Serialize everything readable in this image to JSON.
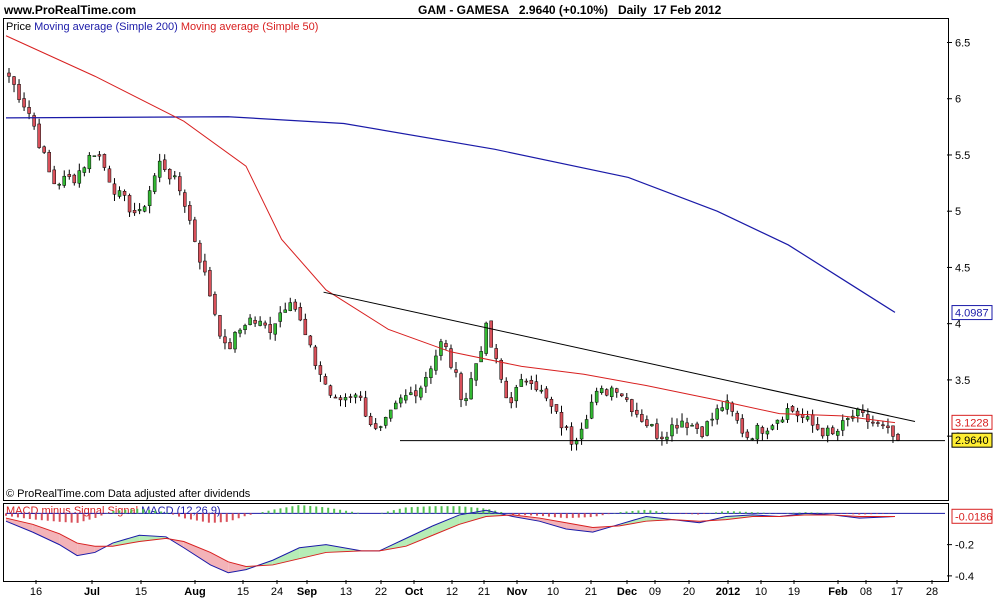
{
  "header": {
    "site": "www.ProRealTime.com",
    "title": "GAM - GAMESA   2.9640 (+0.10%)   Daily  17 Feb 2012"
  },
  "price_legend": {
    "price": "Price",
    "ma200": "Moving average (Simple 200)",
    "ma50": "Moving average (Simple 50)"
  },
  "footer_note": "© ProRealTime.com  Data adjusted after dividends",
  "macd_legend": {
    "hist": "MACD minus Signal",
    "signal": "Signal",
    "macd": "MACD (12,26,9)"
  },
  "badges": {
    "ma200": "4.0987",
    "ma50": "3.1228",
    "last": "2.9640",
    "macd": "-0.0186"
  },
  "colors": {
    "up": "#33b833",
    "down": "#d9505a",
    "ma200": "#1a1aa8",
    "ma50": "#d82020",
    "macd_line": "#1a1aa8",
    "signal_line": "#d82020",
    "hist": "#50c050",
    "fill_pos": "#b6ecb6",
    "fill_neg": "#f3b3b8",
    "last_badge_bg": "#ffee33"
  },
  "chart_data": [
    {
      "type": "candlestick",
      "title": "GAM - GAMESA",
      "ylim": [
        2.45,
        6.7
      ],
      "yticks": [
        6.5,
        6,
        5.5,
        5,
        4.5,
        4,
        3.5,
        3
      ],
      "x_labels": [
        "16",
        "Jul",
        "15",
        "Aug",
        "15",
        "24",
        "Sep",
        "13",
        "22",
        "Oct",
        "12",
        "21",
        "Nov",
        "10",
        "21",
        "Dec",
        "09",
        "20",
        "2012",
        "10",
        "19",
        "Feb",
        "08",
        "17",
        "28"
      ],
      "anchors": [
        {
          "name": "Jun 16",
          "price": 6.2
        },
        {
          "name": "Jun 30",
          "price": 5.85
        },
        {
          "name": "Jul 08",
          "price": 5.25
        },
        {
          "name": "Jul 12",
          "price": 5.3
        },
        {
          "name": "Jul 15",
          "price": 5.55
        },
        {
          "name": "Jul 22",
          "price": 5.15
        },
        {
          "name": "Jul 28",
          "price": 4.95
        },
        {
          "name": "Aug 03",
          "price": 5.45
        },
        {
          "name": "Aug 08",
          "price": 5.15
        },
        {
          "name": "Aug 12",
          "price": 4.45
        },
        {
          "name": "Aug 17",
          "price": 3.75
        },
        {
          "name": "Aug 24",
          "price": 4.05
        },
        {
          "name": "Aug 30",
          "price": 3.95
        },
        {
          "name": "Sep 06",
          "price": 4.25
        },
        {
          "name": "Sep 12",
          "price": 3.7
        },
        {
          "name": "Sep 16",
          "price": 3.3
        },
        {
          "name": "Sep 20",
          "price": 3.4
        },
        {
          "name": "Sep 23",
          "price": 3.0
        },
        {
          "name": "Sep 30",
          "price": 3.3
        },
        {
          "name": "Oct 06",
          "price": 3.45
        },
        {
          "name": "Oct 12",
          "price": 3.85
        },
        {
          "name": "Oct 19",
          "price": 3.3
        },
        {
          "name": "Oct 27",
          "price": 3.95
        },
        {
          "name": "Nov 02",
          "price": 3.3
        },
        {
          "name": "Nov 10",
          "price": 3.55
        },
        {
          "name": "Nov 18",
          "price": 3.25
        },
        {
          "name": "Nov 25",
          "price": 2.95
        },
        {
          "name": "Dec 03",
          "price": 3.35
        },
        {
          "name": "Dec 07",
          "price": 3.45
        },
        {
          "name": "Dec 13",
          "price": 3.2
        },
        {
          "name": "Dec 19",
          "price": 3.0
        },
        {
          "name": "Dec 24",
          "price": 3.15
        },
        {
          "name": "Dec 30",
          "price": 3.05
        },
        {
          "name": "Jan 03",
          "price": 3.3
        },
        {
          "name": "Jan 09",
          "price": 3.0
        },
        {
          "name": "Jan 14",
          "price": 3.1
        },
        {
          "name": "Jan 19",
          "price": 3.25
        },
        {
          "name": "Jan 25",
          "price": 3.1
        },
        {
          "name": "Jan 31",
          "price": 3.0
        },
        {
          "name": "Feb 06",
          "price": 3.2
        },
        {
          "name": "Feb 13",
          "price": 3.1
        },
        {
          "name": "Feb 17",
          "price": 2.96
        }
      ],
      "ma200": [
        [
          0.0,
          5.83
        ],
        [
          0.25,
          5.84
        ],
        [
          0.38,
          5.78
        ],
        [
          0.55,
          5.55
        ],
        [
          0.7,
          5.3
        ],
        [
          0.8,
          5.0
        ],
        [
          0.88,
          4.7
        ],
        [
          0.95,
          4.35
        ],
        [
          1.0,
          4.1
        ]
      ],
      "ma50": [
        [
          0.0,
          6.56
        ],
        [
          0.1,
          6.2
        ],
        [
          0.2,
          5.8
        ],
        [
          0.27,
          5.4
        ],
        [
          0.31,
          4.75
        ],
        [
          0.36,
          4.3
        ],
        [
          0.43,
          3.95
        ],
        [
          0.5,
          3.75
        ],
        [
          0.58,
          3.62
        ],
        [
          0.65,
          3.55
        ],
        [
          0.72,
          3.45
        ],
        [
          0.8,
          3.32
        ],
        [
          0.87,
          3.2
        ],
        [
          0.94,
          3.18
        ],
        [
          1.0,
          3.12
        ]
      ],
      "trendline": [
        [
          0.34,
          4.28
        ],
        [
          1.0,
          3.13
        ]
      ],
      "support": [
        [
          0.44,
          2.96
        ],
        [
          1.0,
          2.96
        ]
      ],
      "last_price": 2.964
    },
    {
      "type": "macd",
      "title": "MACD (12,26,9)",
      "ylim": [
        -0.42,
        0.06
      ],
      "yticks": [
        -0.2,
        -0.4
      ],
      "last_value": -0.0186,
      "macd": [
        [
          0.0,
          -0.05
        ],
        [
          0.03,
          -0.12
        ],
        [
          0.06,
          -0.2
        ],
        [
          0.08,
          -0.27
        ],
        [
          0.1,
          -0.25
        ],
        [
          0.12,
          -0.19
        ],
        [
          0.15,
          -0.14
        ],
        [
          0.18,
          -0.15
        ],
        [
          0.2,
          -0.22
        ],
        [
          0.23,
          -0.33
        ],
        [
          0.25,
          -0.38
        ],
        [
          0.27,
          -0.36
        ],
        [
          0.3,
          -0.3
        ],
        [
          0.33,
          -0.22
        ],
        [
          0.36,
          -0.2
        ],
        [
          0.4,
          -0.24
        ],
        [
          0.42,
          -0.24
        ],
        [
          0.45,
          -0.16
        ],
        [
          0.48,
          -0.08
        ],
        [
          0.51,
          -0.01
        ],
        [
          0.54,
          0.02
        ],
        [
          0.57,
          -0.02
        ],
        [
          0.6,
          -0.05
        ],
        [
          0.63,
          -0.1
        ],
        [
          0.66,
          -0.12
        ],
        [
          0.69,
          -0.07
        ],
        [
          0.72,
          -0.02
        ],
        [
          0.75,
          -0.04
        ],
        [
          0.78,
          -0.06
        ],
        [
          0.81,
          -0.02
        ],
        [
          0.84,
          -0.01
        ],
        [
          0.87,
          -0.02
        ],
        [
          0.9,
          0.0
        ],
        [
          0.93,
          -0.01
        ],
        [
          0.96,
          -0.03
        ],
        [
          1.0,
          -0.02
        ]
      ],
      "signal": [
        [
          0.0,
          -0.03
        ],
        [
          0.03,
          -0.07
        ],
        [
          0.06,
          -0.13
        ],
        [
          0.08,
          -0.19
        ],
        [
          0.1,
          -0.21
        ],
        [
          0.12,
          -0.21
        ],
        [
          0.15,
          -0.18
        ],
        [
          0.18,
          -0.16
        ],
        [
          0.2,
          -0.18
        ],
        [
          0.23,
          -0.25
        ],
        [
          0.25,
          -0.31
        ],
        [
          0.27,
          -0.34
        ],
        [
          0.3,
          -0.33
        ],
        [
          0.33,
          -0.29
        ],
        [
          0.36,
          -0.25
        ],
        [
          0.4,
          -0.24
        ],
        [
          0.42,
          -0.24
        ],
        [
          0.45,
          -0.21
        ],
        [
          0.48,
          -0.14
        ],
        [
          0.51,
          -0.07
        ],
        [
          0.54,
          -0.02
        ],
        [
          0.57,
          -0.01
        ],
        [
          0.6,
          -0.03
        ],
        [
          0.63,
          -0.06
        ],
        [
          0.66,
          -0.09
        ],
        [
          0.69,
          -0.08
        ],
        [
          0.72,
          -0.05
        ],
        [
          0.75,
          -0.04
        ],
        [
          0.78,
          -0.05
        ],
        [
          0.81,
          -0.04
        ],
        [
          0.84,
          -0.02
        ],
        [
          0.87,
          -0.02
        ],
        [
          0.9,
          -0.01
        ],
        [
          0.93,
          -0.01
        ],
        [
          0.96,
          -0.02
        ],
        [
          1.0,
          -0.02
        ]
      ]
    }
  ]
}
